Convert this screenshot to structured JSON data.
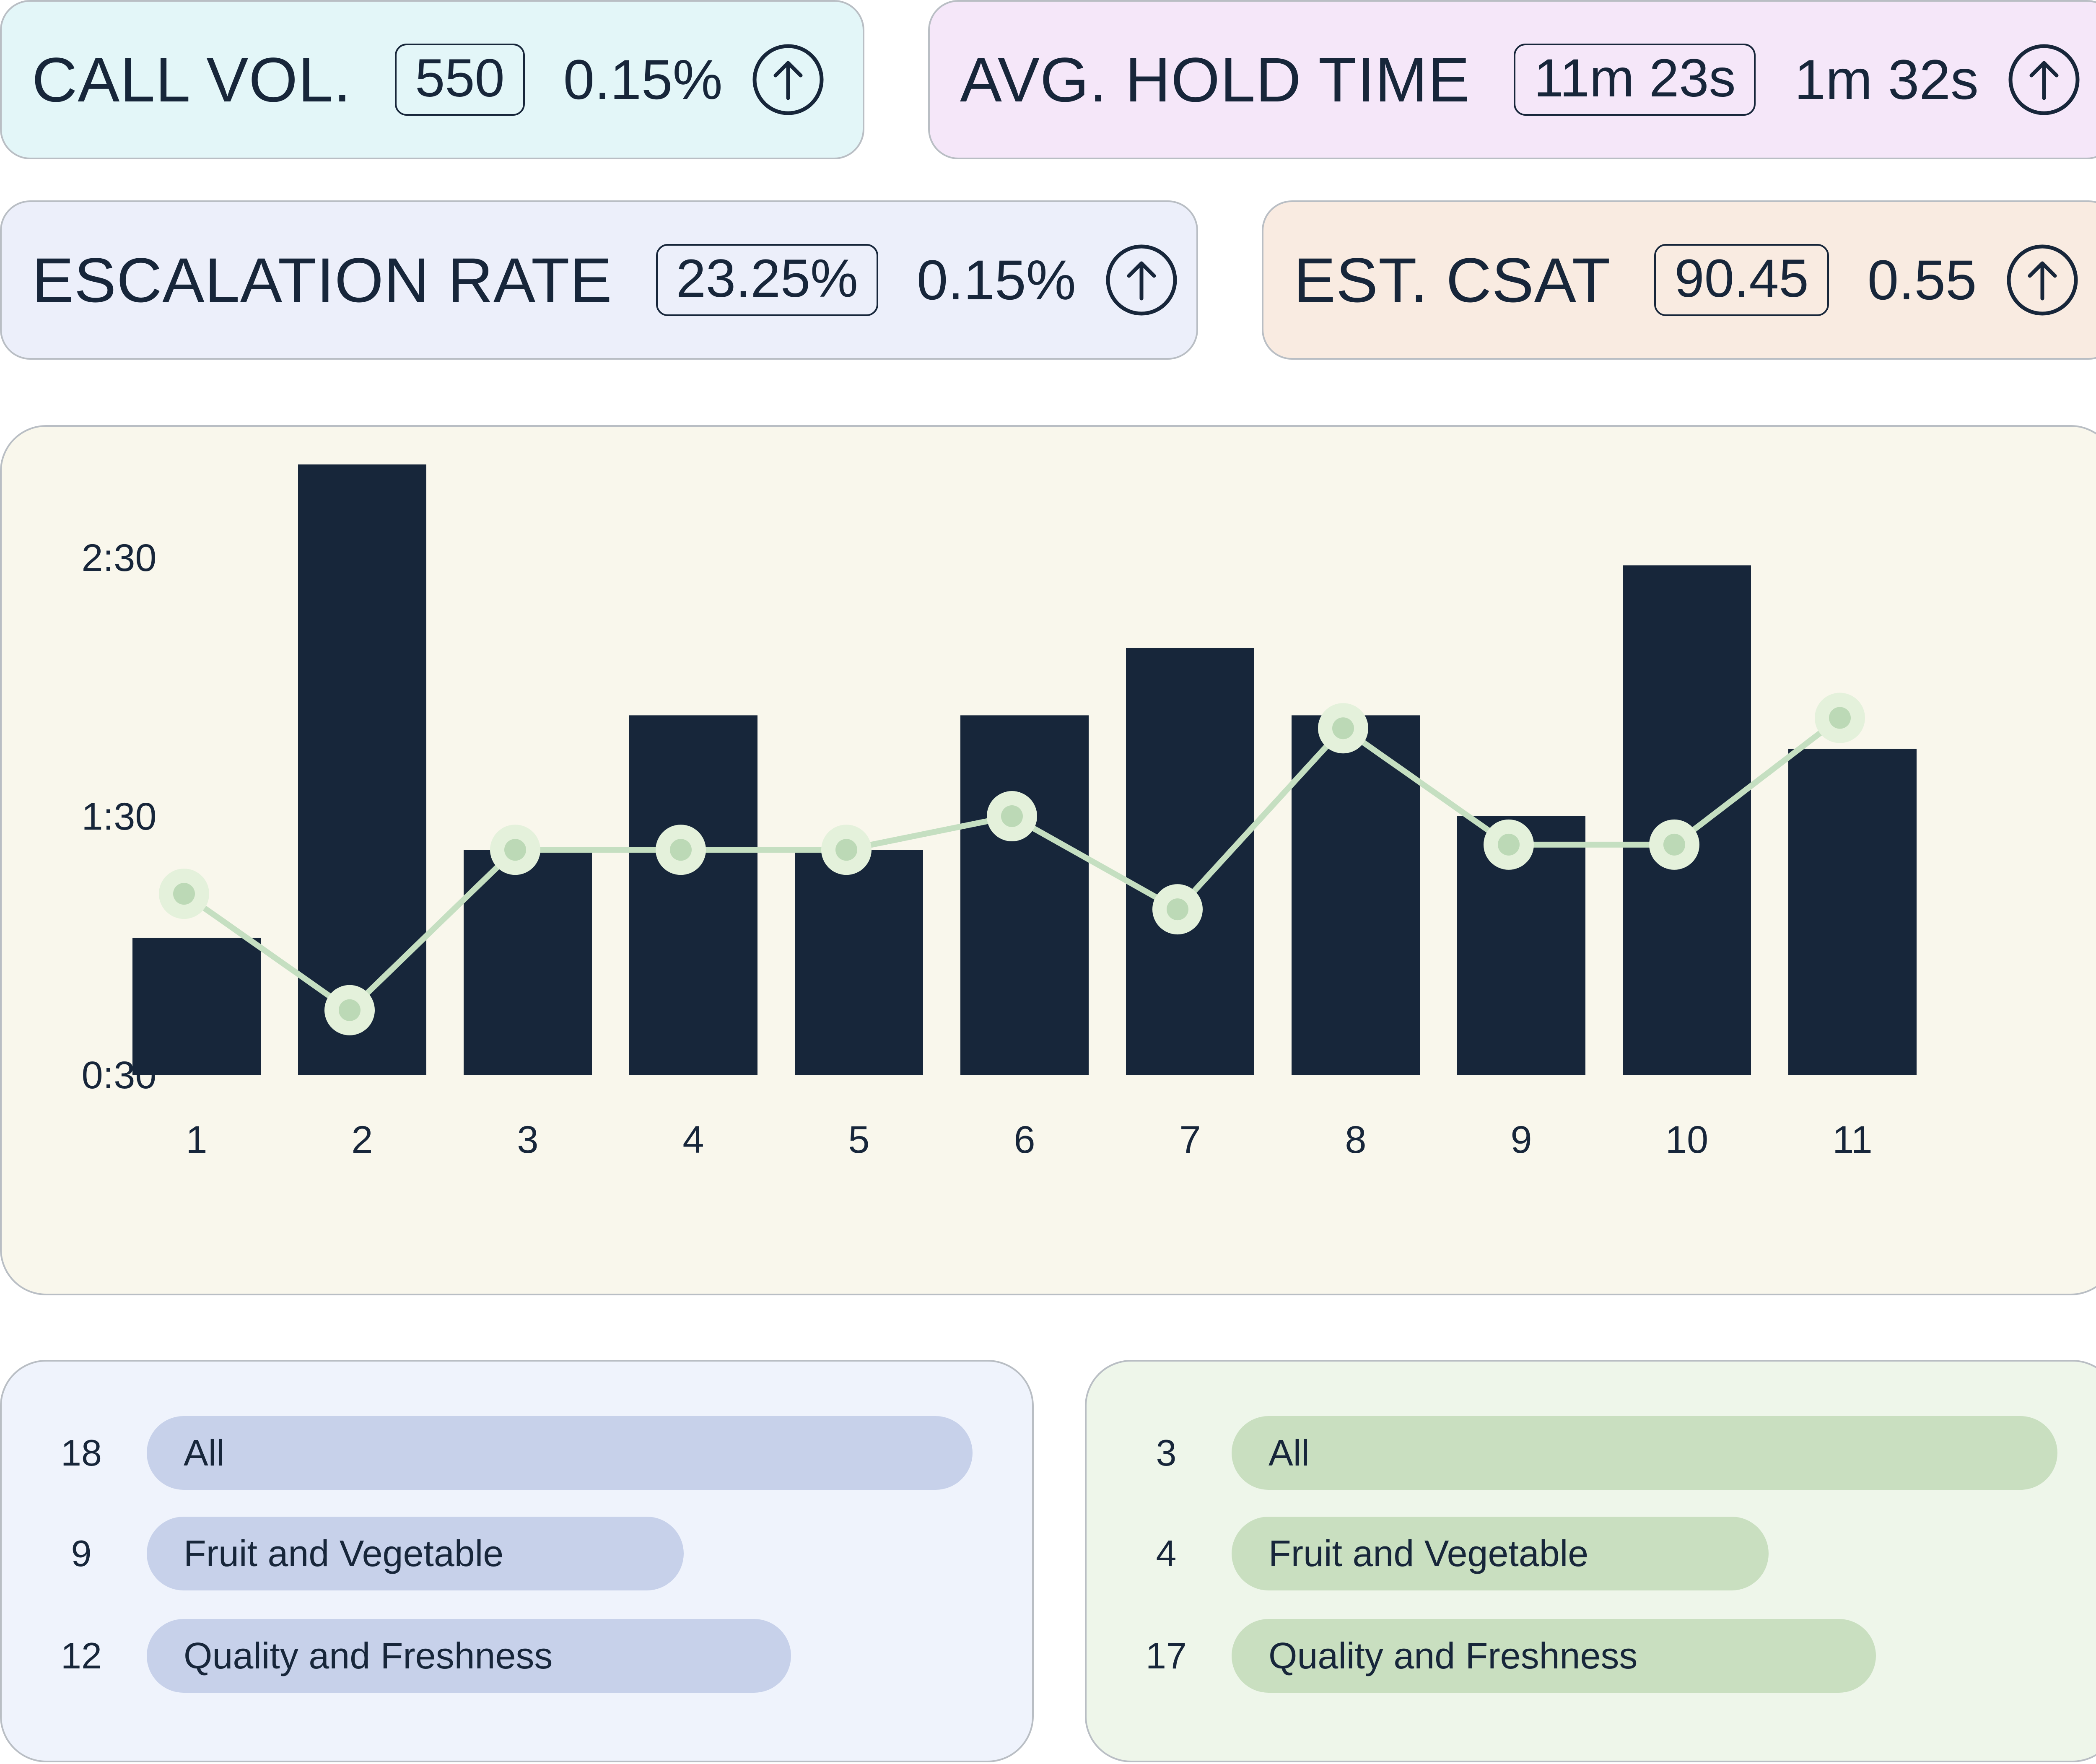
{
  "kpis": [
    {
      "label": "CALL VOL.",
      "value": "550",
      "delta": "0.15%"
    },
    {
      "label": "AVG. HOLD TIME",
      "value": "11m 23s",
      "delta": "1m 32s"
    },
    {
      "label": "ESCALATION RATE",
      "value": "23.25%",
      "delta": "0.15%"
    },
    {
      "label": "EST. CSAT",
      "value": "90.45",
      "delta": "0.55"
    }
  ],
  "chart_data": {
    "type": "bar",
    "categories": [
      "1",
      "2",
      "3",
      "4",
      "5",
      "6",
      "7",
      "8",
      "9",
      "10",
      "11"
    ],
    "series": [
      {
        "name": "bars",
        "type": "bar",
        "values": [
          1.03,
          2.86,
          1.37,
          1.89,
          1.37,
          1.89,
          2.15,
          1.89,
          1.5,
          2.47,
          1.76
        ]
      },
      {
        "name": "line",
        "type": "line",
        "values": [
          1.2,
          0.75,
          1.37,
          1.37,
          1.37,
          1.5,
          1.14,
          1.84,
          1.39,
          1.39,
          1.88
        ]
      }
    ],
    "yticks": [
      {
        "value": 0.5,
        "label": "0:30"
      },
      {
        "value": 1.5,
        "label": "1:30"
      },
      {
        "value": 2.5,
        "label": "2:30"
      }
    ],
    "ylim": [
      0.5,
      3.0
    ],
    "title": "",
    "xlabel": "",
    "ylabel": "",
    "colors": {
      "bar": "#17263a",
      "line": "#c5dfc1",
      "marker_fill": "#e4f1db",
      "marker_center": "#bcd9b6"
    }
  },
  "lists": [
    {
      "items": [
        {
          "count": "18",
          "label": "All",
          "value": 18
        },
        {
          "count": "9",
          "label": "Fruit and Vegetable",
          "value": 9
        },
        {
          "count": "12",
          "label": "Quality and Freshness",
          "value": 12
        }
      ]
    },
    {
      "items": [
        {
          "count": "3",
          "label": "All",
          "value": 3
        },
        {
          "count": "4",
          "label": "Fruit and Vegetable",
          "value": 4
        },
        {
          "count": "17",
          "label": "Quality and Freshness",
          "value": 17
        }
      ]
    }
  ]
}
